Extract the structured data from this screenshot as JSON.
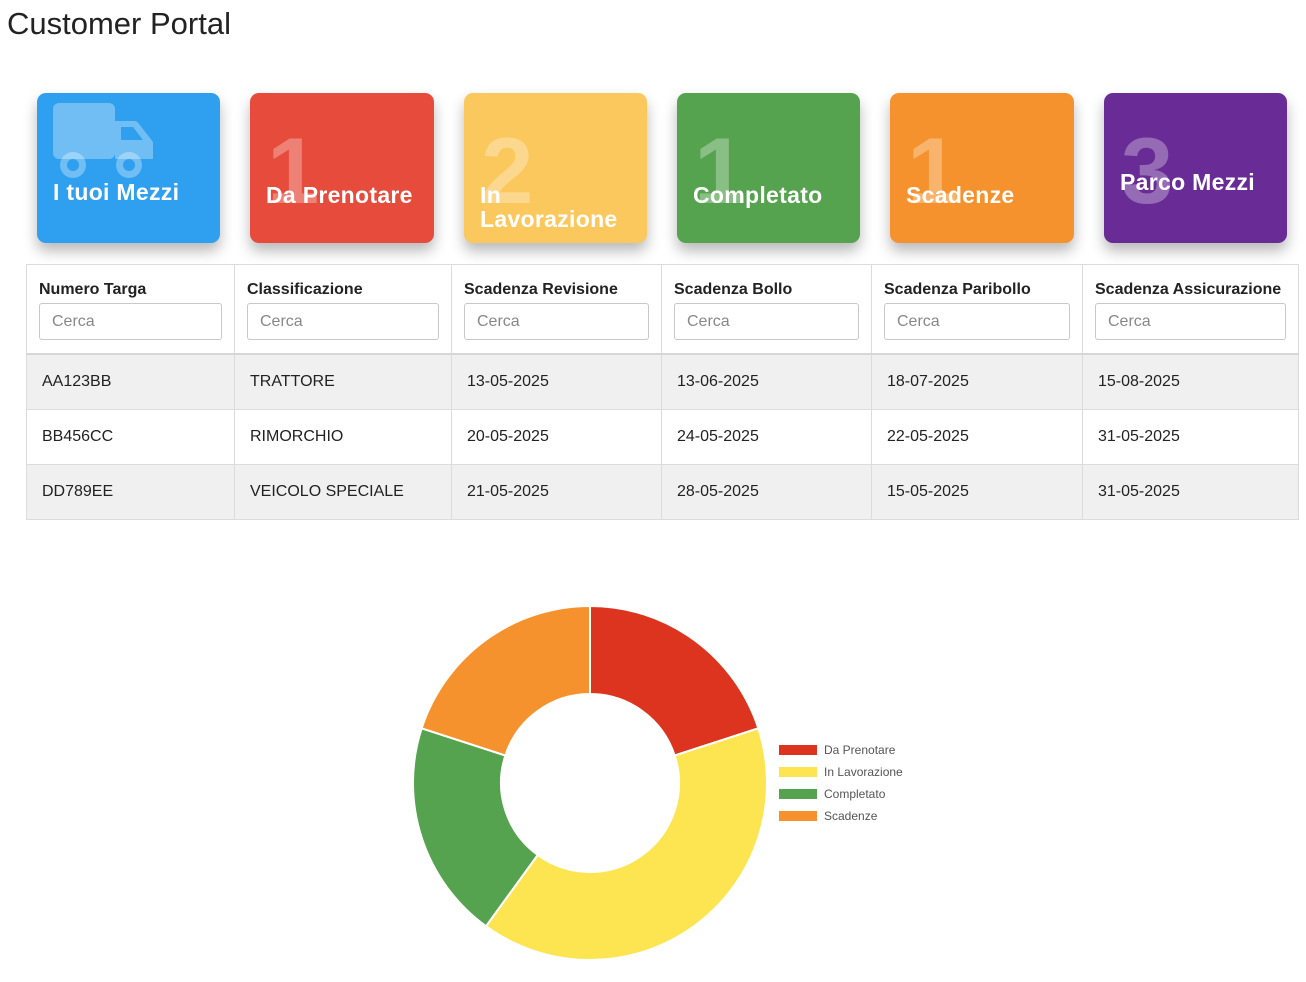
{
  "header": {
    "title": "Customer Portal"
  },
  "tiles": [
    {
      "label": "I tuoi Mezzi",
      "count": "",
      "color": "#2f9ff0",
      "icon": "truck-icon"
    },
    {
      "label": "Da Prenotare",
      "count": "1",
      "color": "#e74b3b"
    },
    {
      "label": "In Lavorazione",
      "line1": "In",
      "line2": "Lavorazione",
      "count": "2",
      "color": "#fbc85e"
    },
    {
      "label": "Completato",
      "count": "1",
      "color": "#56a34f"
    },
    {
      "label": "Scadenze",
      "count": "1",
      "color": "#f5922e"
    },
    {
      "label": "Parco Mezzi",
      "count": "3",
      "color": "#692c96"
    }
  ],
  "table": {
    "columns": [
      "Numero Targa",
      "Classificazione",
      "Scadenza Revisione",
      "Scadenza Bollo",
      "Scadenza Paribollo",
      "Scadenza Assicurazione"
    ],
    "filter_placeholder": "Cerca",
    "rows": [
      [
        "AA123BB",
        "TRATTORE",
        "13-05-2025",
        "13-06-2025",
        "18-07-2025",
        "15-08-2025"
      ],
      [
        "BB456CC",
        "RIMORCHIO",
        "20-05-2025",
        "24-05-2025",
        "22-05-2025",
        "31-05-2025"
      ],
      [
        "DD789EE",
        "VEICOLO SPECIALE",
        "21-05-2025",
        "28-05-2025",
        "15-05-2025",
        "31-05-2025"
      ]
    ]
  },
  "chart_data": {
    "type": "pie",
    "donut": true,
    "categories": [
      "Da Prenotare",
      "In Lavorazione",
      "Completato",
      "Scadenze"
    ],
    "values": [
      1,
      2,
      1,
      1
    ],
    "colors": [
      "#dc341e",
      "#fde552",
      "#56a34f",
      "#f5922e"
    ],
    "legend": "right",
    "title": ""
  }
}
